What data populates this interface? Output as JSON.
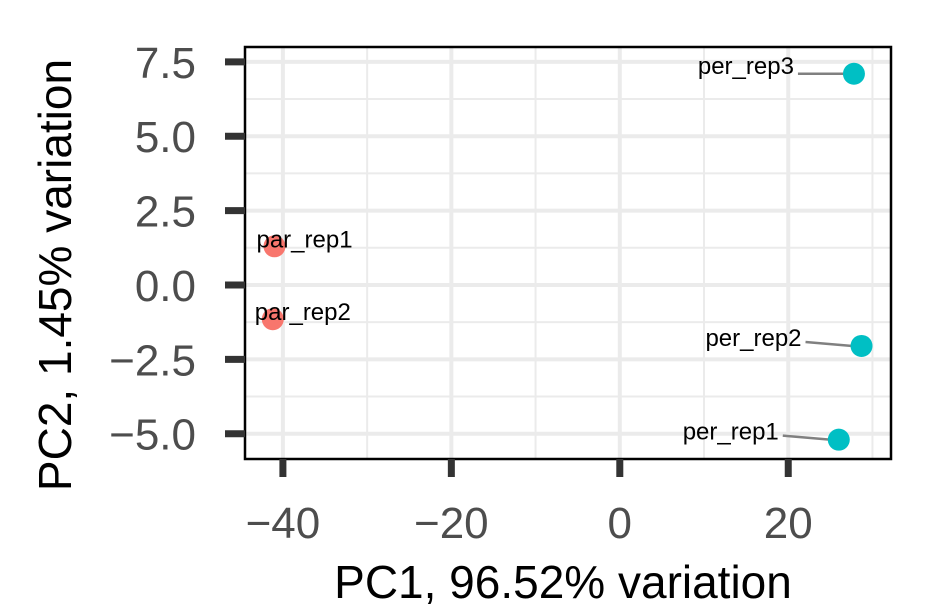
{
  "chart_data": {
    "type": "scatter",
    "title": "",
    "xlabel": "PC1, 96.52% variation",
    "ylabel": "PC2, 1.45% variation",
    "xlim": [
      -44.5,
      32.2
    ],
    "ylim": [
      -5.85,
      8.0
    ],
    "x_ticks": [
      -40,
      -20,
      0,
      20
    ],
    "x_tick_labels": [
      "−40",
      "−20",
      "0",
      "20"
    ],
    "y_ticks": [
      -5.0,
      -2.5,
      0.0,
      2.5,
      5.0,
      7.5
    ],
    "y_tick_labels": [
      "−5.0",
      "−2.5",
      "0.0",
      "2.5",
      "5.0",
      "7.5"
    ],
    "grid": true,
    "legend": "none",
    "series": [
      {
        "color": "#f8766d",
        "points": [
          {
            "label": "par_rep1",
            "x": -41.0,
            "y": 1.3
          },
          {
            "label": "par_rep2",
            "x": -41.2,
            "y": -1.15
          }
        ]
      },
      {
        "color": "#00bfc4",
        "points": [
          {
            "label": "per_rep3",
            "x": 27.8,
            "y": 7.1
          },
          {
            "label": "per_rep2",
            "x": 28.7,
            "y": -2.05
          },
          {
            "label": "per_rep1",
            "x": 26.0,
            "y": -5.2
          }
        ]
      }
    ]
  }
}
